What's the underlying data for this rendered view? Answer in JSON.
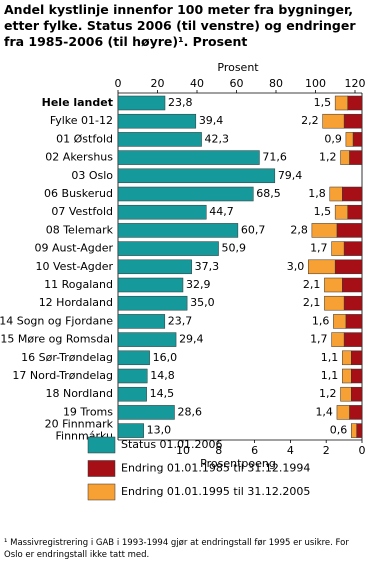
{
  "chart_data": [
    {
      "type": "bar",
      "orientation": "horizontal",
      "title": "Andel kystlinje innenfor 100 meter fra bygninger, etter fylke. Status 2006 (til venstre) og  endringer fra 1985-2006 (til høyre)¹. Prosent",
      "xlabel": "Prosent",
      "xlim": [
        0,
        120
      ],
      "xticks": [
        0,
        20,
        40,
        60,
        80,
        100,
        120
      ],
      "categories": [
        "Hele landet",
        "Fylke 01-12",
        "01 Østfold",
        "02 Akershus",
        "03 Oslo",
        "06 Buskerud",
        "07 Vestfold",
        "08 Telemark",
        "09 Aust-Agder",
        "10 Vest-Agder",
        "11 Rogaland",
        "12 Hordaland",
        "14 Sogn og Fjordane",
        "15 Møre og Romsdal",
        "16 Sør-Trøndelag",
        "17 Nord-Trøndelag",
        "18 Nordland",
        "19 Troms",
        "20 Finnmark\nFinnmárku"
      ],
      "series": [
        {
          "name": "Status 01.01.2006",
          "color": "#16999a",
          "values": [
            23.8,
            39.4,
            42.3,
            71.6,
            79.4,
            68.5,
            44.7,
            60.7,
            50.9,
            37.3,
            32.9,
            35.0,
            23.7,
            29.4,
            16.0,
            14.8,
            14.5,
            28.6,
            13.0
          ],
          "value_labels": [
            "23,8",
            "39,4",
            "42,3",
            "71,6",
            "79,4",
            "68,5",
            "44,7",
            "60,7",
            "50,9",
            "37,3",
            "32,9",
            "35,0",
            "23,7",
            "29,4",
            "16,0",
            "14,8",
            "14,5",
            "28,6",
            "13,0"
          ]
        }
      ]
    },
    {
      "type": "stacked_bar",
      "orientation": "horizontal",
      "xlabel": "Prosentpoeng",
      "xlim": [
        0,
        10
      ],
      "xticks": [
        10,
        8,
        6,
        4,
        2,
        0
      ],
      "x_reversed": true,
      "series": [
        {
          "name": "Endring 01.01.1985 til 31.12.1994",
          "color": "#a50f15",
          "values": [
            0.8,
            1.0,
            0.5,
            0.7,
            null,
            1.1,
            0.8,
            1.4,
            1.0,
            1.5,
            1.1,
            1.0,
            0.9,
            1.0,
            0.6,
            0.6,
            0.6,
            0.7,
            0.3
          ]
        },
        {
          "name": "Endring 01.01.1995 til 31.12.2005",
          "color": "#f7a033",
          "values": [
            0.7,
            1.2,
            0.4,
            0.5,
            null,
            0.7,
            0.7,
            1.4,
            0.7,
            1.5,
            1.0,
            1.1,
            0.7,
            0.7,
            0.5,
            0.5,
            0.6,
            0.7,
            0.3
          ]
        }
      ],
      "totals": {
        "values": [
          1.5,
          2.2,
          0.9,
          1.2,
          null,
          1.8,
          1.5,
          2.8,
          1.7,
          3.0,
          2.1,
          2.1,
          1.6,
          1.7,
          1.1,
          1.1,
          1.2,
          1.4,
          0.6
        ],
        "value_labels": [
          "1,5",
          "2,2",
          "0,9",
          "1,2",
          null,
          "1,8",
          "1,5",
          "2,8",
          "1,7",
          "3,0",
          "2,1",
          "2,1",
          "1,6",
          "1,7",
          "1,1",
          "1,1",
          "1,2",
          "1,4",
          "0,6"
        ]
      }
    }
  ],
  "footnote": "¹ Massivregistrering i GAB i 1993-1994 gjør at endringstall før 1995 er usikre. For Oslo er endringstall ikke tatt med."
}
